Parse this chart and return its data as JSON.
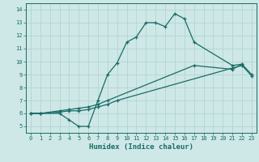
{
  "xlabel": "Humidex (Indice chaleur)",
  "bg_color": "#cde8e6",
  "grid_color": "#b0d0ce",
  "line_color": "#1a6b66",
  "xlim": [
    -0.5,
    23.5
  ],
  "ylim": [
    4.5,
    14.5
  ],
  "xticks": [
    0,
    1,
    2,
    3,
    4,
    5,
    6,
    7,
    8,
    9,
    10,
    11,
    12,
    13,
    14,
    15,
    16,
    17,
    18,
    19,
    20,
    21,
    22,
    23
  ],
  "yticks": [
    5,
    6,
    7,
    8,
    9,
    10,
    11,
    12,
    13,
    14
  ],
  "line1_x": [
    0,
    1,
    3,
    4,
    5,
    6,
    7,
    8,
    9,
    10,
    11,
    12,
    13,
    14,
    15,
    16,
    17,
    21,
    22
  ],
  "line1_y": [
    6.0,
    6.0,
    6.0,
    5.5,
    5.0,
    5.0,
    7.0,
    9.0,
    9.9,
    11.5,
    11.9,
    13.0,
    13.0,
    12.7,
    13.7,
    13.3,
    11.5,
    9.7,
    9.8
  ],
  "line2_x": [
    0,
    1,
    3,
    4,
    5,
    6,
    7,
    8,
    17,
    21,
    22,
    23
  ],
  "line2_y": [
    6.0,
    6.0,
    6.2,
    6.3,
    6.4,
    6.5,
    6.7,
    7.0,
    9.7,
    9.4,
    9.8,
    9.0
  ],
  "line3_x": [
    0,
    1,
    3,
    4,
    5,
    6,
    7,
    8,
    9,
    21,
    22,
    23
  ],
  "line3_y": [
    6.0,
    6.0,
    6.1,
    6.2,
    6.2,
    6.3,
    6.5,
    6.7,
    7.0,
    9.5,
    9.7,
    8.9
  ]
}
